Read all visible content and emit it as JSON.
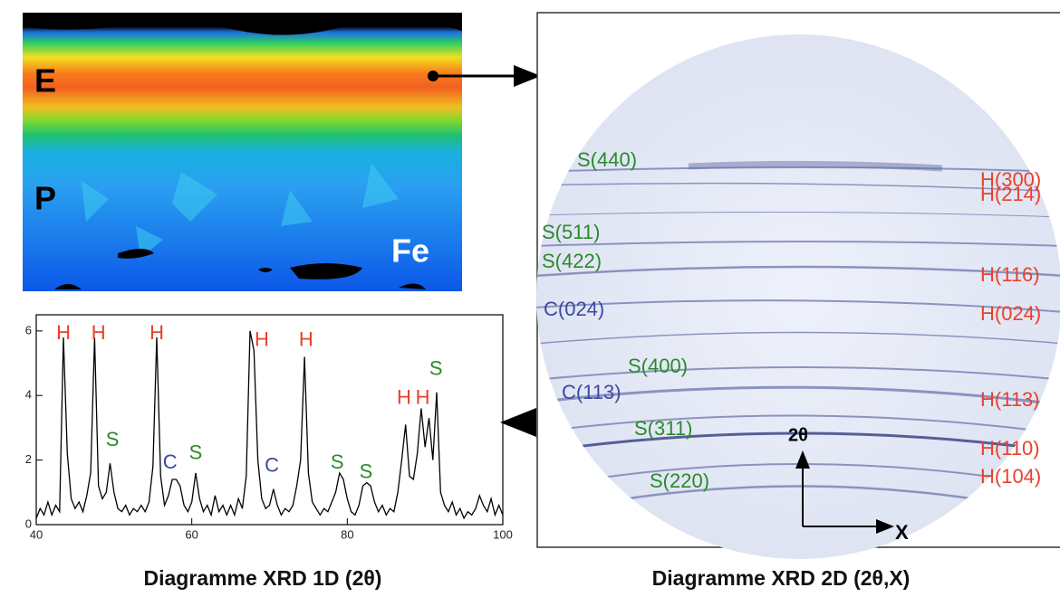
{
  "heatmap": {
    "label_top": "E",
    "label_bottom": "P",
    "label_substrate": "Fe"
  },
  "chart_data": {
    "type": "line",
    "title": "Diagramme XRD 1D (2θ)",
    "x": [
      40,
      40.5,
      41,
      41.5,
      42,
      42.5,
      43,
      43.5,
      44,
      44.5,
      45,
      45.5,
      46,
      46.5,
      47,
      47.5,
      48,
      48.5,
      49,
      49.5,
      50,
      50.5,
      51,
      51.5,
      52,
      52.5,
      53,
      53.5,
      54,
      54.5,
      55,
      55.5,
      56,
      56.5,
      57,
      57.5,
      58,
      58.5,
      59,
      59.5,
      60,
      60.5,
      61,
      61.5,
      62,
      62.5,
      63,
      63.5,
      64,
      64.5,
      65,
      65.5,
      66,
      66.5,
      67,
      67.5,
      68,
      68.5,
      69,
      69.5,
      70,
      70.5,
      71,
      71.5,
      72,
      72.5,
      73,
      73.5,
      74,
      74.5,
      75,
      75.5,
      76,
      76.5,
      77,
      77.5,
      78,
      78.5,
      79,
      79.5,
      80,
      80.5,
      81,
      81.5,
      82,
      82.5,
      83,
      83.5,
      84,
      84.5,
      85,
      85.5,
      86,
      86.5,
      87,
      87.5,
      88,
      88.5,
      89,
      89.5,
      90,
      90.5,
      91,
      91.5,
      92,
      92.5,
      93,
      93.5,
      94,
      94.5,
      95,
      95.5,
      96,
      96.5,
      97,
      97.5,
      98,
      98.5,
      99,
      99.5,
      100
    ],
    "values": [
      0.2,
      0.5,
      0.3,
      0.7,
      0.3,
      0.6,
      0.4,
      5.8,
      2.2,
      0.8,
      0.5,
      0.7,
      0.4,
      0.9,
      1.6,
      5.8,
      1.2,
      0.8,
      1.0,
      1.9,
      1.0,
      0.5,
      0.4,
      0.6,
      0.3,
      0.5,
      0.4,
      0.6,
      0.4,
      0.7,
      1.8,
      5.8,
      1.5,
      0.6,
      0.9,
      1.4,
      1.4,
      1.2,
      0.6,
      0.4,
      0.7,
      1.6,
      0.8,
      0.4,
      0.6,
      0.3,
      0.9,
      0.4,
      0.6,
      0.3,
      0.6,
      0.3,
      0.8,
      0.5,
      1.5,
      6.0,
      5.4,
      2.0,
      0.8,
      0.5,
      0.6,
      1.1,
      0.6,
      0.3,
      0.5,
      0.4,
      0.6,
      1.2,
      2.0,
      5.2,
      1.6,
      0.7,
      0.5,
      0.3,
      0.5,
      0.4,
      0.7,
      1.0,
      1.6,
      1.4,
      0.8,
      0.4,
      0.3,
      0.6,
      1.2,
      1.3,
      1.2,
      0.7,
      0.4,
      0.6,
      0.3,
      0.5,
      0.4,
      1.0,
      2.0,
      3.1,
      1.5,
      1.4,
      2.2,
      3.6,
      2.4,
      3.3,
      2.0,
      4.1,
      1.0,
      0.6,
      0.4,
      0.7,
      0.3,
      0.5,
      0.2,
      0.4,
      0.3,
      0.5,
      0.9,
      0.6,
      0.4,
      0.8,
      0.3,
      0.6,
      0.3
    ],
    "color": "#000000",
    "xlim": [
      40,
      100
    ],
    "ylim": [
      0,
      6.5
    ],
    "xticks": [
      40,
      60,
      80,
      100
    ],
    "yticks": [
      0,
      2,
      4,
      6
    ],
    "annotations": [
      {
        "text": "H",
        "x": 43.5,
        "y": 5.9,
        "color": "#e8412b"
      },
      {
        "text": "H",
        "x": 48,
        "y": 5.9,
        "color": "#e8412b"
      },
      {
        "text": "H",
        "x": 55.5,
        "y": 5.9,
        "color": "#e8412b"
      },
      {
        "text": "S",
        "x": 49.8,
        "y": 2.6,
        "color": "#2a8a2a"
      },
      {
        "text": "C",
        "x": 57.2,
        "y": 1.9,
        "color": "#3b4aa0"
      },
      {
        "text": "S",
        "x": 60.5,
        "y": 2.2,
        "color": "#2a8a2a"
      },
      {
        "text": "H",
        "x": 69,
        "y": 5.7,
        "color": "#e8412b"
      },
      {
        "text": "C",
        "x": 70.3,
        "y": 1.8,
        "color": "#3b4aa0"
      },
      {
        "text": "H",
        "x": 74.7,
        "y": 5.7,
        "color": "#e8412b"
      },
      {
        "text": "S",
        "x": 78.7,
        "y": 1.9,
        "color": "#2a8a2a"
      },
      {
        "text": "S",
        "x": 82.4,
        "y": 1.6,
        "color": "#2a8a2a"
      },
      {
        "text": "H",
        "x": 87.3,
        "y": 3.9,
        "color": "#e8412b"
      },
      {
        "text": "H",
        "x": 89.7,
        "y": 3.9,
        "color": "#e8412b"
      },
      {
        "text": "S",
        "x": 91.4,
        "y": 4.8,
        "color": "#2a8a2a"
      }
    ]
  },
  "diffraction": {
    "title": "Diagramme XRD 2D (2θ,X)",
    "axis_2theta": "2θ",
    "axis_x": "X",
    "labels": [
      "S(440)",
      "S(511)",
      "S(422)",
      "C(024)",
      "S(400)",
      "C(113)",
      "S(311)",
      "S(220)",
      "H(300)",
      "H(214)",
      "H(116)",
      "H(024)",
      "H(113)",
      "H(110)",
      "H(104)"
    ]
  }
}
